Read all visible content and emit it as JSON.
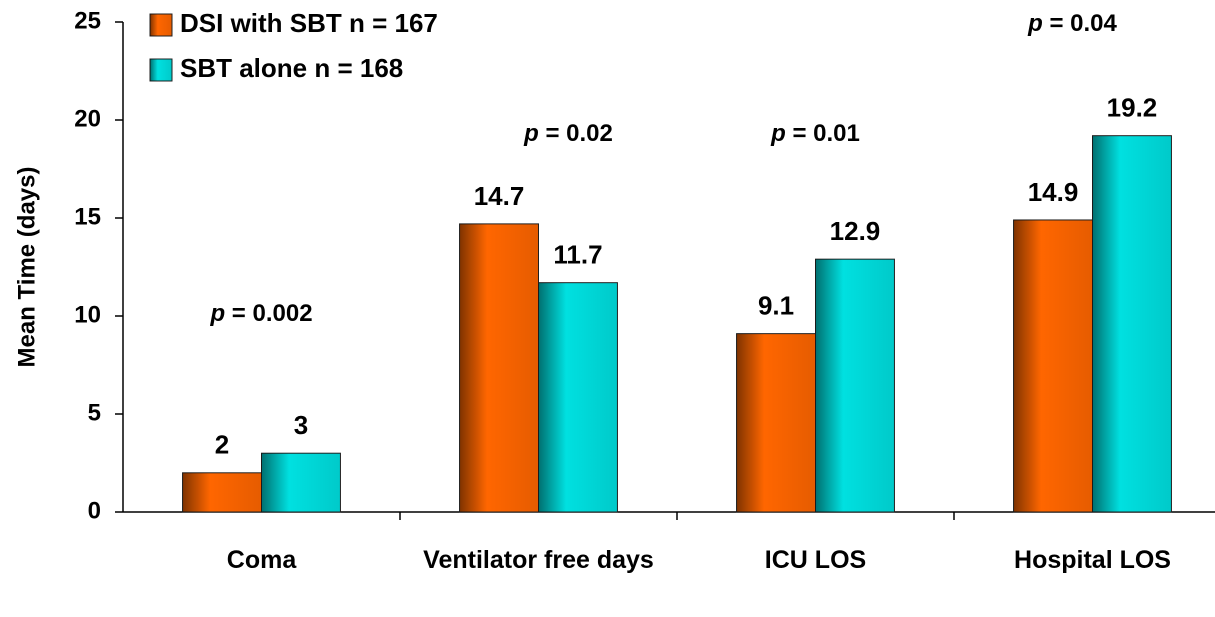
{
  "chart_data": {
    "type": "bar",
    "y_label": "Mean Time (days)",
    "categories": [
      "Coma",
      "Ventilator free days",
      "ICU LOS",
      "Hospital LOS"
    ],
    "series": [
      {
        "name": "DSI with SBT n = 167",
        "color": "#ff6600",
        "values": [
          2,
          14.7,
          9.1,
          14.9
        ]
      },
      {
        "name": "SBT alone n = 168",
        "color": "#00e0e0",
        "values": [
          3,
          11.7,
          12.9,
          19.2
        ]
      }
    ],
    "annotations": [
      "p = 0.002",
      "p = 0.02",
      "p = 0.01",
      "p = 0.04"
    ],
    "ylim": [
      0,
      25
    ],
    "yticks": [
      0,
      5,
      10,
      15,
      20,
      25
    ],
    "grid": false,
    "legend": "top-left"
  }
}
